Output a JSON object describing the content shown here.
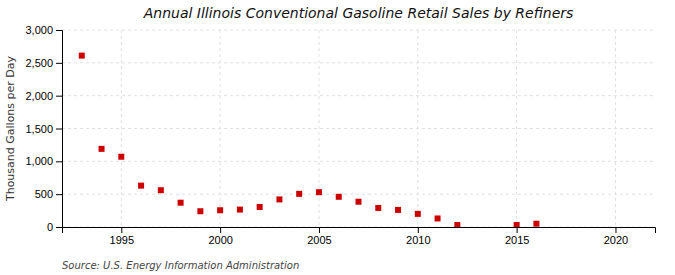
{
  "chart_data": {
    "type": "scatter",
    "title": "Annual Illinois Conventional Gasoline Retail Sales by Refiners",
    "ylabel": "Thousand Gallons per Day",
    "annotations": [
      "Source: U.S. Energy Information Administration"
    ],
    "x": [
      1993,
      1994,
      1995,
      1996,
      1997,
      1998,
      1999,
      2000,
      2001,
      2002,
      2003,
      2004,
      2005,
      2006,
      2007,
      2008,
      2009,
      2010,
      2011,
      2012,
      2015,
      2016
    ],
    "values": [
      2610,
      1190,
      1070,
      630,
      560,
      370,
      240,
      255,
      265,
      305,
      420,
      505,
      530,
      460,
      385,
      290,
      260,
      200,
      130,
      30,
      30,
      50
    ],
    "color": "#cc0000",
    "marker": "square",
    "xlim": [
      1992,
      2022
    ],
    "xticks": [
      1995,
      2000,
      2005,
      2010,
      2015,
      2020
    ],
    "ylim": [
      0,
      3000
    ],
    "yticks": [
      0,
      500,
      {
        "value": 1000,
        "label": "1,000"
      },
      {
        "value": 1500,
        "label": "1,500"
      },
      {
        "value": 2000,
        "label": "2,000"
      },
      {
        "value": 2500,
        "label": "2,500"
      },
      {
        "value": 3000,
        "label": "3,000"
      }
    ],
    "grid": true
  }
}
